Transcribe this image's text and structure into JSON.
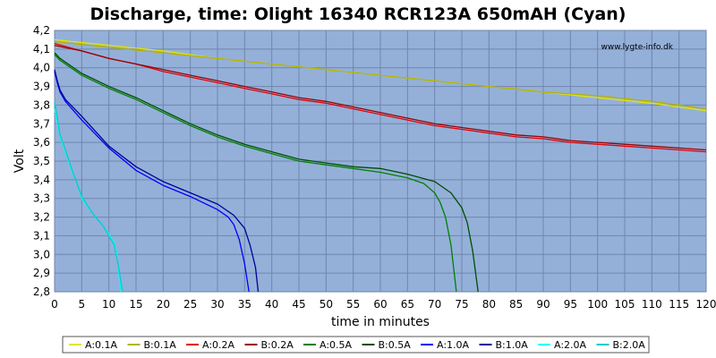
{
  "chart_data": {
    "type": "line",
    "title": "Discharge, time: Olight 16340 RCR123A 650mAH (Cyan)",
    "xlabel": "time in minutes",
    "ylabel": "Volt",
    "watermark": "www.lygte-info.dk",
    "xlim": [
      0,
      120
    ],
    "ylim": [
      2.8,
      4.2
    ],
    "xticks": [
      0,
      5,
      10,
      15,
      20,
      25,
      30,
      35,
      40,
      45,
      50,
      55,
      60,
      65,
      70,
      75,
      80,
      85,
      90,
      95,
      100,
      105,
      110,
      115,
      120
    ],
    "yticks": [
      2.8,
      2.9,
      3.0,
      3.1,
      3.2,
      3.3,
      3.4,
      3.5,
      3.6,
      3.7,
      3.8,
      3.9,
      4.0,
      4.1,
      4.2
    ],
    "ytick_labels": [
      "2,8",
      "2,9",
      "3,0",
      "3,1",
      "3,2",
      "3,3",
      "3,4",
      "3,5",
      "3,6",
      "3,7",
      "3,8",
      "3,9",
      "4,0",
      "4,1",
      "4,2"
    ],
    "grid": true,
    "plot_background": "#94b0d9",
    "legend_position": "bottom",
    "series": [
      {
        "name": "A:0.1A",
        "color": "#e5e500",
        "points": [
          [
            0,
            4.15
          ],
          [
            10,
            4.12
          ],
          [
            20,
            4.09
          ],
          [
            30,
            4.05
          ],
          [
            40,
            4.02
          ],
          [
            50,
            3.99
          ],
          [
            60,
            3.96
          ],
          [
            70,
            3.93
          ],
          [
            80,
            3.9
          ],
          [
            90,
            3.87
          ],
          [
            100,
            3.84
          ],
          [
            110,
            3.81
          ],
          [
            120,
            3.77
          ]
        ]
      },
      {
        "name": "B:0.1A",
        "color": "#b3b300",
        "points": [
          [
            0,
            4.14
          ],
          [
            10,
            4.11
          ],
          [
            20,
            4.08
          ],
          [
            30,
            4.05
          ],
          [
            40,
            4.02
          ],
          [
            50,
            3.99
          ],
          [
            60,
            3.96
          ],
          [
            70,
            3.93
          ],
          [
            80,
            3.9
          ],
          [
            90,
            3.87
          ],
          [
            100,
            3.85
          ],
          [
            110,
            3.82
          ],
          [
            120,
            3.78
          ]
        ]
      },
      {
        "name": "A:0.2A",
        "color": "#e50000",
        "points": [
          [
            0,
            4.13
          ],
          [
            5,
            4.09
          ],
          [
            10,
            4.05
          ],
          [
            15,
            4.02
          ],
          [
            20,
            3.98
          ],
          [
            25,
            3.95
          ],
          [
            30,
            3.92
          ],
          [
            35,
            3.89
          ],
          [
            40,
            3.86
          ],
          [
            45,
            3.83
          ],
          [
            50,
            3.81
          ],
          [
            55,
            3.78
          ],
          [
            60,
            3.75
          ],
          [
            65,
            3.72
          ],
          [
            70,
            3.69
          ],
          [
            75,
            3.67
          ],
          [
            80,
            3.65
          ],
          [
            85,
            3.63
          ],
          [
            90,
            3.62
          ],
          [
            95,
            3.6
          ],
          [
            100,
            3.59
          ],
          [
            105,
            3.58
          ],
          [
            110,
            3.57
          ],
          [
            115,
            3.56
          ],
          [
            120,
            3.55
          ]
        ]
      },
      {
        "name": "B:0.2A",
        "color": "#990000",
        "points": [
          [
            0,
            4.12
          ],
          [
            5,
            4.09
          ],
          [
            10,
            4.05
          ],
          [
            15,
            4.02
          ],
          [
            20,
            3.99
          ],
          [
            25,
            3.96
          ],
          [
            30,
            3.93
          ],
          [
            35,
            3.9
          ],
          [
            40,
            3.87
          ],
          [
            45,
            3.84
          ],
          [
            50,
            3.82
          ],
          [
            55,
            3.79
          ],
          [
            60,
            3.76
          ],
          [
            65,
            3.73
          ],
          [
            70,
            3.7
          ],
          [
            75,
            3.68
          ],
          [
            80,
            3.66
          ],
          [
            85,
            3.64
          ],
          [
            90,
            3.63
          ],
          [
            95,
            3.61
          ],
          [
            100,
            3.6
          ],
          [
            105,
            3.59
          ],
          [
            110,
            3.58
          ],
          [
            115,
            3.57
          ],
          [
            120,
            3.56
          ]
        ]
      },
      {
        "name": "A:0.5A",
        "color": "#008000",
        "points": [
          [
            0,
            4.07
          ],
          [
            1,
            4.04
          ],
          [
            3,
            4.0
          ],
          [
            5,
            3.96
          ],
          [
            10,
            3.89
          ],
          [
            15,
            3.83
          ],
          [
            20,
            3.76
          ],
          [
            25,
            3.69
          ],
          [
            30,
            3.63
          ],
          [
            35,
            3.58
          ],
          [
            40,
            3.54
          ],
          [
            45,
            3.5
          ],
          [
            50,
            3.48
          ],
          [
            55,
            3.46
          ],
          [
            60,
            3.44
          ],
          [
            65,
            3.41
          ],
          [
            68,
            3.38
          ],
          [
            70,
            3.33
          ],
          [
            71,
            3.28
          ],
          [
            72,
            3.2
          ],
          [
            73,
            3.05
          ],
          [
            74,
            2.8
          ]
        ]
      },
      {
        "name": "B:0.5A",
        "color": "#004d00",
        "points": [
          [
            0,
            4.08
          ],
          [
            1,
            4.05
          ],
          [
            3,
            4.01
          ],
          [
            5,
            3.97
          ],
          [
            10,
            3.9
          ],
          [
            15,
            3.84
          ],
          [
            20,
            3.77
          ],
          [
            25,
            3.7
          ],
          [
            30,
            3.64
          ],
          [
            35,
            3.59
          ],
          [
            40,
            3.55
          ],
          [
            45,
            3.51
          ],
          [
            50,
            3.49
          ],
          [
            55,
            3.47
          ],
          [
            60,
            3.46
          ],
          [
            65,
            3.43
          ],
          [
            70,
            3.39
          ],
          [
            73,
            3.33
          ],
          [
            75,
            3.25
          ],
          [
            76,
            3.17
          ],
          [
            77,
            3.02
          ],
          [
            78,
            2.8
          ]
        ]
      },
      {
        "name": "A:1.0A",
        "color": "#0000ff",
        "points": [
          [
            0,
            3.98
          ],
          [
            0.5,
            3.92
          ],
          [
            1,
            3.87
          ],
          [
            2,
            3.82
          ],
          [
            5,
            3.72
          ],
          [
            10,
            3.57
          ],
          [
            15,
            3.45
          ],
          [
            20,
            3.37
          ],
          [
            25,
            3.31
          ],
          [
            30,
            3.24
          ],
          [
            32,
            3.2
          ],
          [
            33,
            3.16
          ],
          [
            34,
            3.08
          ],
          [
            35,
            2.95
          ],
          [
            35.8,
            2.8
          ]
        ]
      },
      {
        "name": "B:1.0A",
        "color": "#000099",
        "points": [
          [
            0,
            3.99
          ],
          [
            0.5,
            3.93
          ],
          [
            1,
            3.88
          ],
          [
            2,
            3.83
          ],
          [
            5,
            3.74
          ],
          [
            10,
            3.58
          ],
          [
            15,
            3.47
          ],
          [
            20,
            3.39
          ],
          [
            25,
            3.33
          ],
          [
            30,
            3.27
          ],
          [
            33,
            3.21
          ],
          [
            35,
            3.14
          ],
          [
            36,
            3.05
          ],
          [
            37,
            2.93
          ],
          [
            37.5,
            2.8
          ]
        ]
      },
      {
        "name": "A:2.0A",
        "color": "#00ffff",
        "points": [
          [
            0,
            3.78
          ],
          [
            1,
            3.63
          ],
          [
            2,
            3.55
          ],
          [
            3,
            3.46
          ],
          [
            4,
            3.39
          ],
          [
            5,
            3.3
          ],
          [
            7,
            3.22
          ],
          [
            9,
            3.15
          ],
          [
            10,
            3.11
          ],
          [
            11,
            3.06
          ],
          [
            11.5,
            3.0
          ],
          [
            12,
            2.85
          ],
          [
            12.3,
            2.8
          ]
        ]
      },
      {
        "name": "B:2.0A",
        "color": "#00cccc",
        "points": [
          [
            0,
            3.82
          ],
          [
            1,
            3.64
          ],
          [
            2,
            3.56
          ],
          [
            3,
            3.47
          ],
          [
            4,
            3.39
          ],
          [
            5,
            3.31
          ],
          [
            7,
            3.22
          ],
          [
            9,
            3.15
          ],
          [
            10,
            3.1
          ],
          [
            11,
            3.05
          ],
          [
            11.8,
            2.93
          ],
          [
            12.5,
            2.8
          ]
        ]
      }
    ]
  }
}
